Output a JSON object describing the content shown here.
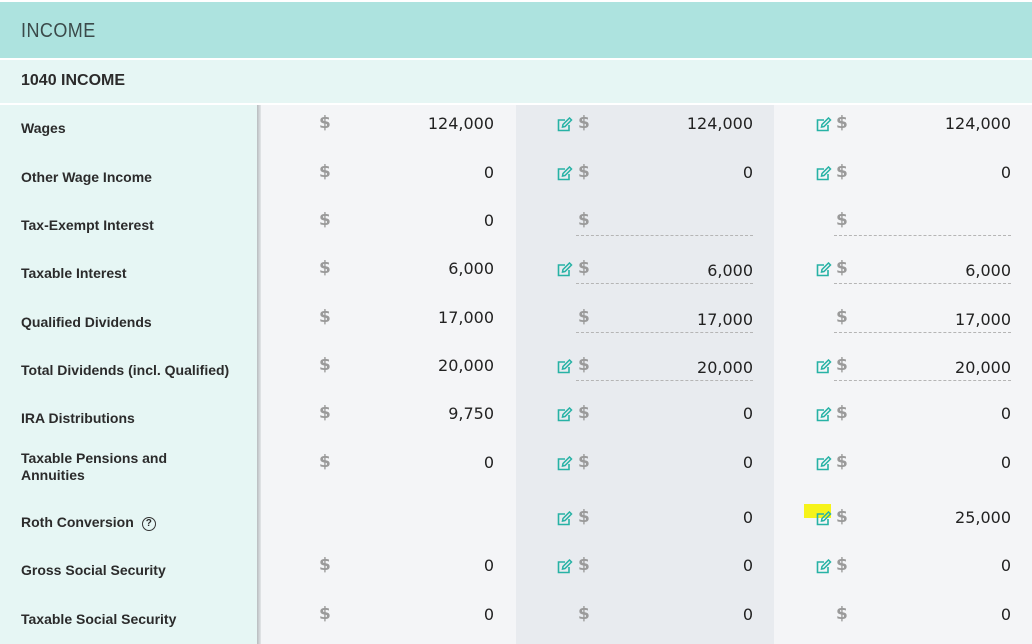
{
  "header": {
    "title": "INCOME"
  },
  "section": {
    "title": "1040 INCOME"
  },
  "colors": {
    "header_bg": "#ade3df",
    "section_bg": "#e6f6f4",
    "accent": "#27b2a5",
    "highlight": "#f6f31a"
  },
  "rows": [
    {
      "label": "Wages",
      "cells": [
        {
          "currency": "$",
          "value": "124,000",
          "edit": false,
          "input": false
        },
        {
          "currency": "$",
          "value": "124,000",
          "edit": true,
          "input": false
        },
        {
          "currency": "$",
          "value": "124,000",
          "edit": true,
          "input": false
        }
      ]
    },
    {
      "label": "Other Wage Income",
      "cells": [
        {
          "currency": "$",
          "value": "0",
          "edit": false,
          "input": false
        },
        {
          "currency": "$",
          "value": "0",
          "edit": true,
          "input": false
        },
        {
          "currency": "$",
          "value": "0",
          "edit": true,
          "input": false
        }
      ]
    },
    {
      "label": "Tax-Exempt Interest",
      "cells": [
        {
          "currency": "$",
          "value": "0",
          "edit": false,
          "input": false
        },
        {
          "currency": "$",
          "value": "",
          "edit": false,
          "input": true
        },
        {
          "currency": "$",
          "value": "",
          "edit": false,
          "input": true
        }
      ]
    },
    {
      "label": "Taxable Interest",
      "cells": [
        {
          "currency": "$",
          "value": "6,000",
          "edit": false,
          "input": false
        },
        {
          "currency": "$",
          "value": "6,000",
          "edit": true,
          "input": true
        },
        {
          "currency": "$",
          "value": "6,000",
          "edit": true,
          "input": true
        }
      ]
    },
    {
      "label": "Qualified Dividends",
      "cells": [
        {
          "currency": "$",
          "value": "17,000",
          "edit": false,
          "input": false
        },
        {
          "currency": "$",
          "value": "17,000",
          "edit": false,
          "input": true
        },
        {
          "currency": "$",
          "value": "17,000",
          "edit": false,
          "input": true
        }
      ]
    },
    {
      "label": "Total Dividends (incl. Qualified)",
      "cells": [
        {
          "currency": "$",
          "value": "20,000",
          "edit": false,
          "input": false
        },
        {
          "currency": "$",
          "value": "20,000",
          "edit": true,
          "input": true
        },
        {
          "currency": "$",
          "value": "20,000",
          "edit": true,
          "input": true
        }
      ]
    },
    {
      "label": "IRA Distributions",
      "cells": [
        {
          "currency": "$",
          "value": "9,750",
          "edit": false,
          "input": false
        },
        {
          "currency": "$",
          "value": "0",
          "edit": true,
          "input": false
        },
        {
          "currency": "$",
          "value": "0",
          "edit": true,
          "input": false
        }
      ]
    },
    {
      "label": "Taxable Pensions and Annuities",
      "cells": [
        {
          "currency": "$",
          "value": "0",
          "edit": false,
          "input": false
        },
        {
          "currency": "$",
          "value": "0",
          "edit": true,
          "input": false
        },
        {
          "currency": "$",
          "value": "0",
          "edit": true,
          "input": false
        }
      ]
    },
    {
      "label": "Roth Conversion",
      "help": "?",
      "cells": [
        null,
        {
          "currency": "$",
          "value": "0",
          "edit": true,
          "input": false
        },
        {
          "currency": "$",
          "value": "25,000",
          "edit": true,
          "input": false,
          "highlight": true
        }
      ]
    },
    {
      "label": "Gross Social Security",
      "cells": [
        {
          "currency": "$",
          "value": "0",
          "edit": false,
          "input": false
        },
        {
          "currency": "$",
          "value": "0",
          "edit": true,
          "input": false
        },
        {
          "currency": "$",
          "value": "0",
          "edit": true,
          "input": false
        }
      ]
    },
    {
      "label": "Taxable Social Security",
      "cells": [
        {
          "currency": "$",
          "value": "0",
          "edit": false,
          "input": false
        },
        {
          "currency": "$",
          "value": "0",
          "edit": false,
          "input": false
        },
        {
          "currency": "$",
          "value": "0",
          "edit": false,
          "input": false
        }
      ]
    }
  ]
}
